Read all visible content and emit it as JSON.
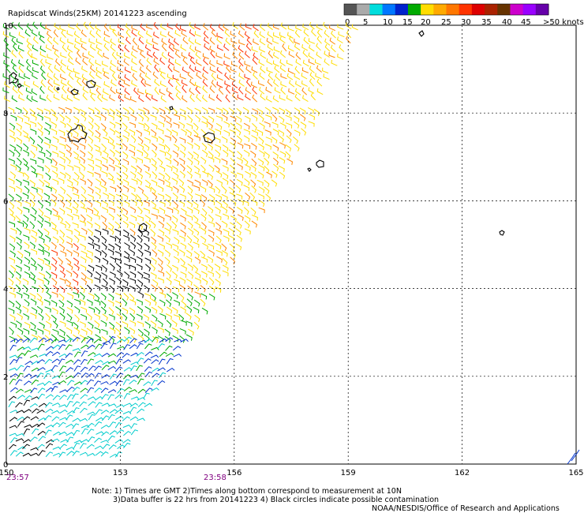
{
  "title": "Rapidscat Winds(25KM) 20141223 ascending",
  "legend": {
    "labels": [
      "0",
      "5",
      "10",
      "15",
      "20",
      "25",
      "30",
      "35",
      "40",
      "45",
      ">50 knots"
    ],
    "colors": [
      "#555555",
      "#aaaaaa",
      "#00dddd",
      "#0077ff",
      "#0022cc",
      "#00aa00",
      "#ffdd00",
      "#ffaa00",
      "#ff7700",
      "#ff3300",
      "#dd0000",
      "#aa2200",
      "#663300",
      "#cc00cc",
      "#9900ff",
      "#6600aa"
    ]
  },
  "map": {
    "x_labels": [
      "150",
      "153",
      "156",
      "159",
      "162",
      "165"
    ],
    "y_labels": [
      "0",
      "2",
      "4",
      "6",
      "8",
      "10"
    ],
    "lon_range": [
      150,
      165
    ],
    "lat_range": [
      0,
      10
    ],
    "times": [
      "23:57",
      "23:58"
    ]
  },
  "notes": {
    "line1": "Note: 1) Times are GMT 2)Times along bottom correspond to measurement at 10N",
    "line2": "3)Data buffer is 22 hrs from 20141223 4) Black circles indicate possible contamination",
    "credit": "NOAA/NESDIS/Office of Research and Applications"
  }
}
